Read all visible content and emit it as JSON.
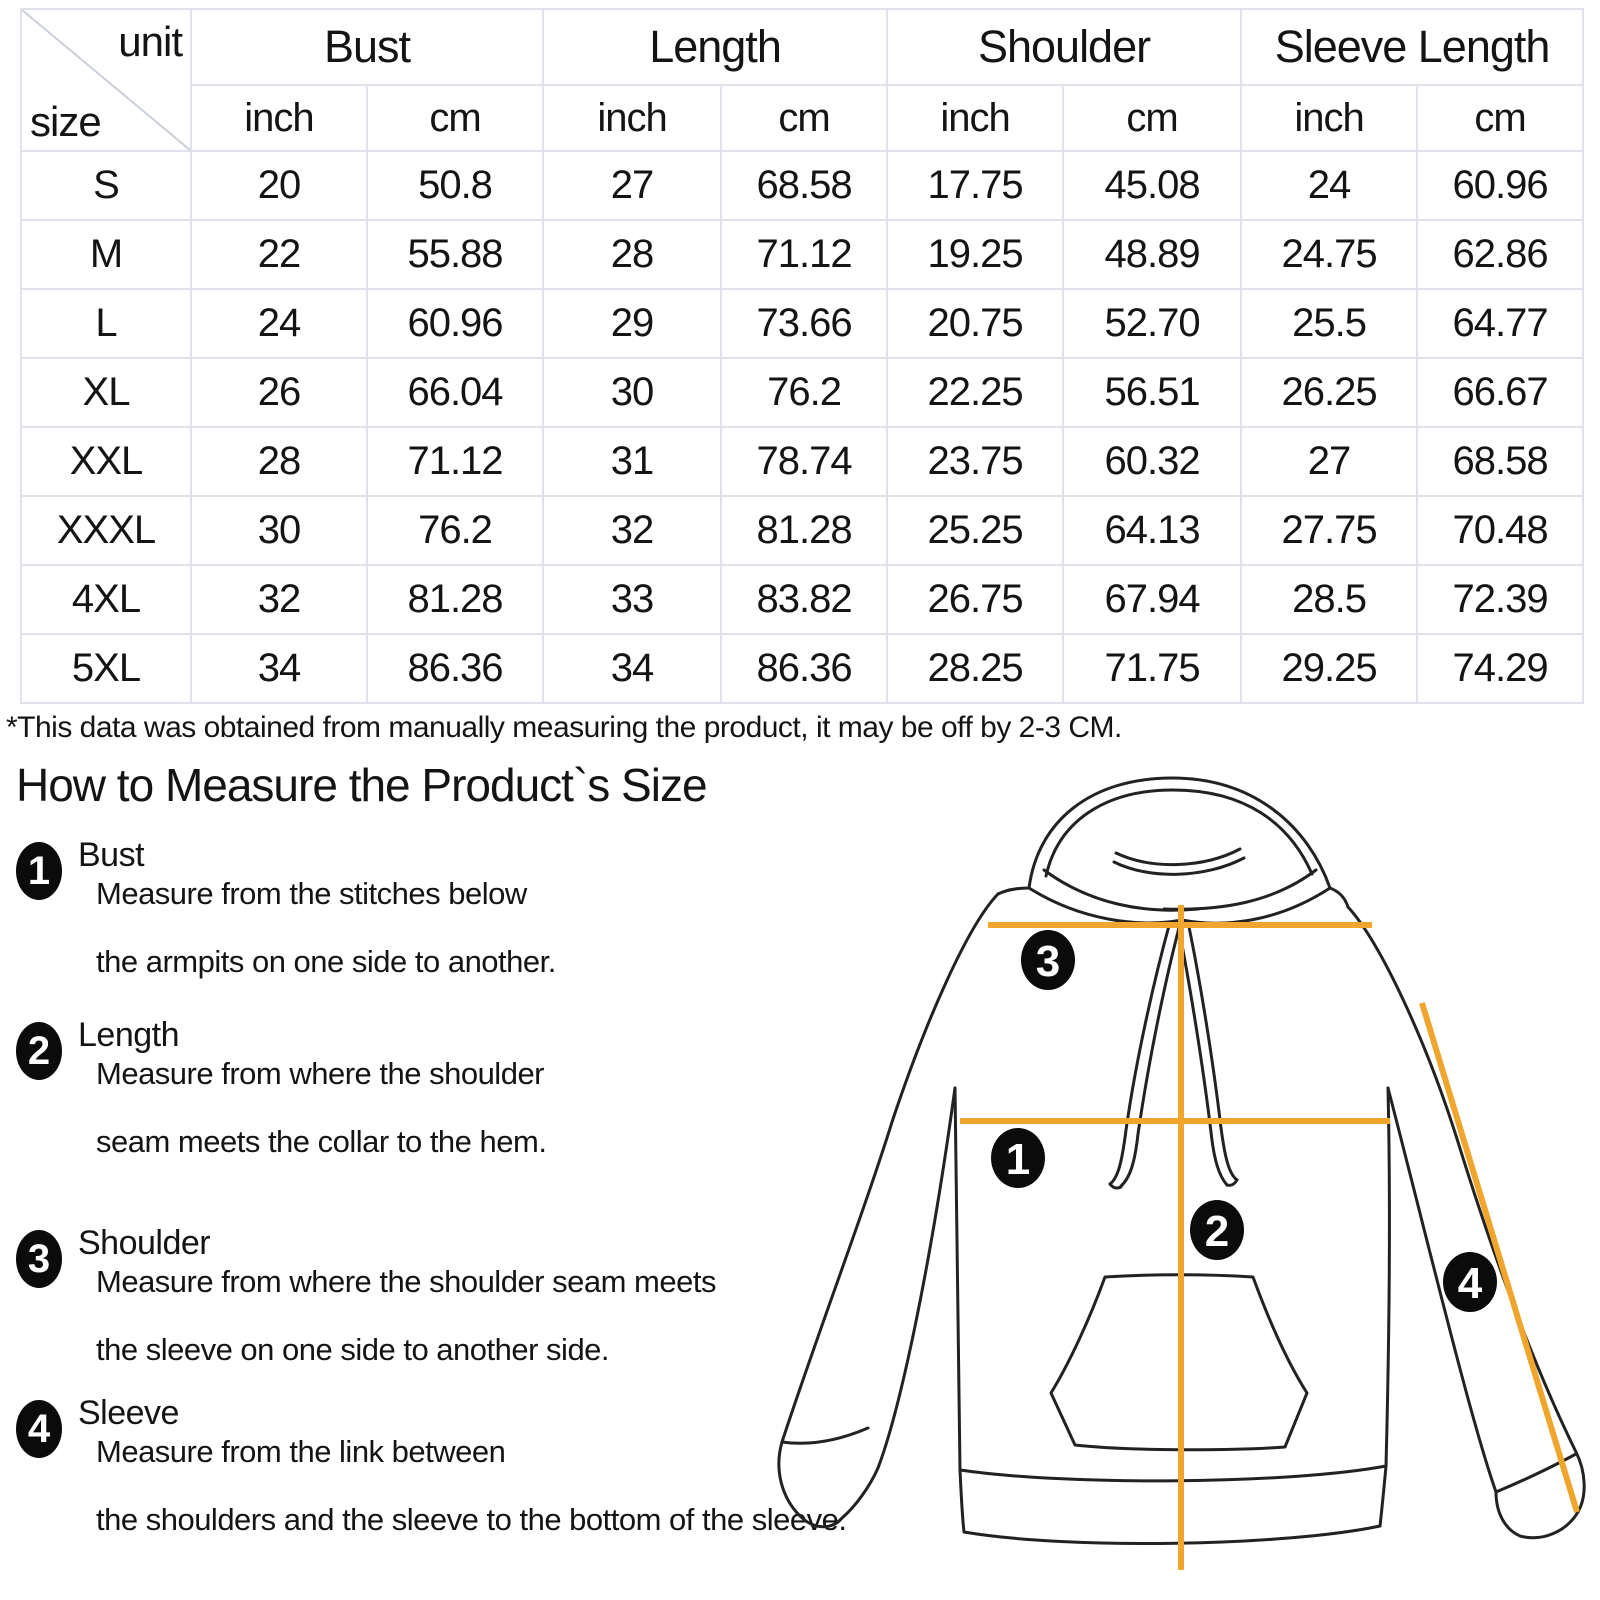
{
  "size_chart": {
    "corner": {
      "top_label": "unit",
      "bottom_label": "size"
    },
    "column_groups": [
      {
        "label": "Bust"
      },
      {
        "label": "Length"
      },
      {
        "label": "Shoulder"
      },
      {
        "label": "Sleeve Length"
      }
    ],
    "unit_headers": [
      "inch",
      "cm",
      "inch",
      "cm",
      "inch",
      "cm",
      "inch",
      "cm"
    ],
    "rows": [
      {
        "size": "S",
        "values": [
          "20",
          "50.8",
          "27",
          "68.58",
          "17.75",
          "45.08",
          "24",
          "60.96"
        ]
      },
      {
        "size": "M",
        "values": [
          "22",
          "55.88",
          "28",
          "71.12",
          "19.25",
          "48.89",
          "24.75",
          "62.86"
        ]
      },
      {
        "size": "L",
        "values": [
          "24",
          "60.96",
          "29",
          "73.66",
          "20.75",
          "52.70",
          "25.5",
          "64.77"
        ]
      },
      {
        "size": "XL",
        "values": [
          "26",
          "66.04",
          "30",
          "76.2",
          "22.25",
          "56.51",
          "26.25",
          "66.67"
        ]
      },
      {
        "size": "XXL",
        "values": [
          "28",
          "71.12",
          "31",
          "78.74",
          "23.75",
          "60.32",
          "27",
          "68.58"
        ]
      },
      {
        "size": "XXXL",
        "values": [
          "30",
          "76.2",
          "32",
          "81.28",
          "25.25",
          "64.13",
          "27.75",
          "70.48"
        ]
      },
      {
        "size": "4XL",
        "values": [
          "32",
          "81.28",
          "33",
          "83.82",
          "26.75",
          "67.94",
          "28.5",
          "72.39"
        ]
      },
      {
        "size": "5XL",
        "values": [
          "34",
          "86.36",
          "34",
          "86.36",
          "28.25",
          "71.75",
          "29.25",
          "74.29"
        ]
      }
    ]
  },
  "note": "*This data was obtained from manually measuring the product, it may be off by 2-3 CM.",
  "section": {
    "heading": "How to Measure the Product`s Size",
    "items": [
      {
        "num": "1",
        "label": "Bust",
        "line1": "Measure from the stitches below",
        "line2": "the armpits on one side to another."
      },
      {
        "num": "2",
        "label": "Length",
        "line1": "Measure from where the shoulder",
        "line2": "seam meets the collar to the hem."
      },
      {
        "num": "3",
        "label": "Shoulder",
        "line1": "Measure from where the shoulder seam meets",
        "line2": "the sleeve on one side to another side."
      },
      {
        "num": "4",
        "label": "Sleeve",
        "line1": "Measure from the link between",
        "line2": "the shoulders and the sleeve to the bottom of the sleeve."
      }
    ]
  },
  "diagram": {
    "markers": [
      "1",
      "2",
      "3",
      "4"
    ],
    "accent_color": "#F0A52D",
    "line_color": "#222222"
  }
}
